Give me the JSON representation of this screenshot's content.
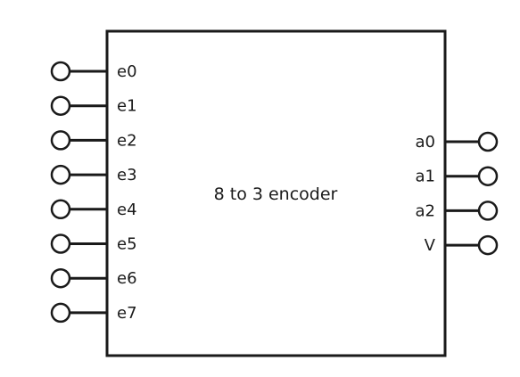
{
  "block": {
    "title": "8 to 3 encoder",
    "inputs": [
      "e0",
      "e1",
      "e2",
      "e3",
      "e4",
      "e5",
      "e6",
      "e7"
    ],
    "outputs": [
      "a0",
      "a1",
      "a2",
      "V"
    ]
  },
  "colors": {
    "stroke": "#1a1a1a",
    "text": "#1a1a1a",
    "background": "#ffffff"
  }
}
